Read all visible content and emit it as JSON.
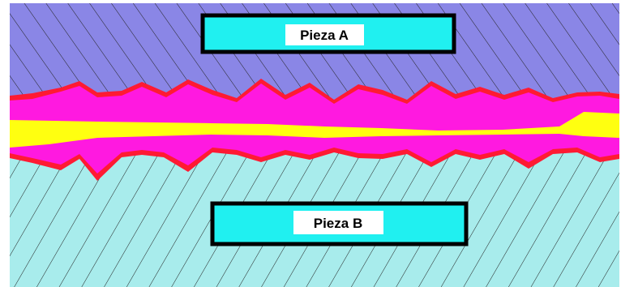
{
  "piece_a": {
    "label": "Pieza A"
  },
  "piece_b": {
    "label": "Pieza B"
  },
  "colors": {
    "piece_a_fill": "#8a86e6",
    "piece_b_fill": "#a8ecec",
    "hatch": "#222222",
    "outer_roughness": "#ff1a33",
    "inner_roughness": "#ff19e0",
    "lubricant_film": "#ffff10",
    "label_box_fill": "#20f0f0",
    "label_box_border": "#000000",
    "label_plate_fill": "#ffffff"
  }
}
